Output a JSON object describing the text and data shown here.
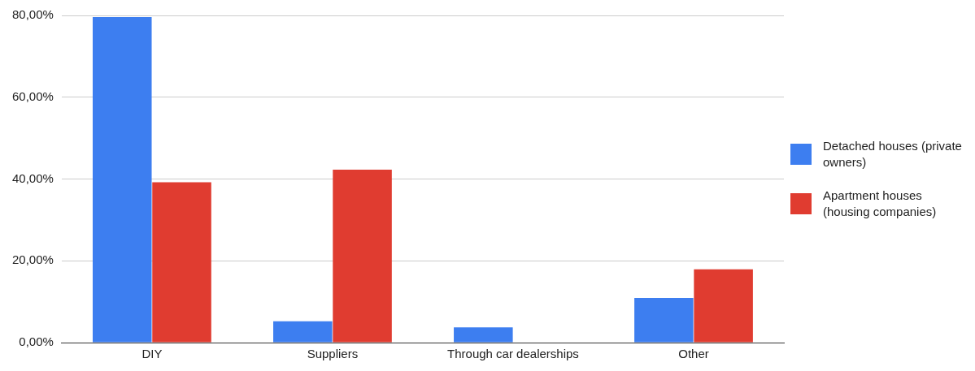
{
  "chart_data": {
    "type": "bar",
    "categories": [
      "DIY",
      "Suppliers",
      "Through car dealerships",
      "Other"
    ],
    "series": [
      {
        "name": "Detached houses (private owners)",
        "color": "#3d7ef0",
        "values": [
          79.6,
          5.2,
          3.7,
          10.9
        ]
      },
      {
        "name": "Apartment houses (housing companies)",
        "color": "#e03c30",
        "values": [
          39.2,
          42.3,
          0,
          17.9
        ]
      }
    ],
    "ylim": [
      0,
      80
    ],
    "yticks": [
      {
        "value": 0,
        "label": "0,00%"
      },
      {
        "value": 20,
        "label": "20,00%"
      },
      {
        "value": 40,
        "label": "40,00%"
      },
      {
        "value": 60,
        "label": "60,00%"
      },
      {
        "value": 80,
        "label": "80,00%"
      }
    ],
    "grid": "y",
    "legend": "right"
  }
}
